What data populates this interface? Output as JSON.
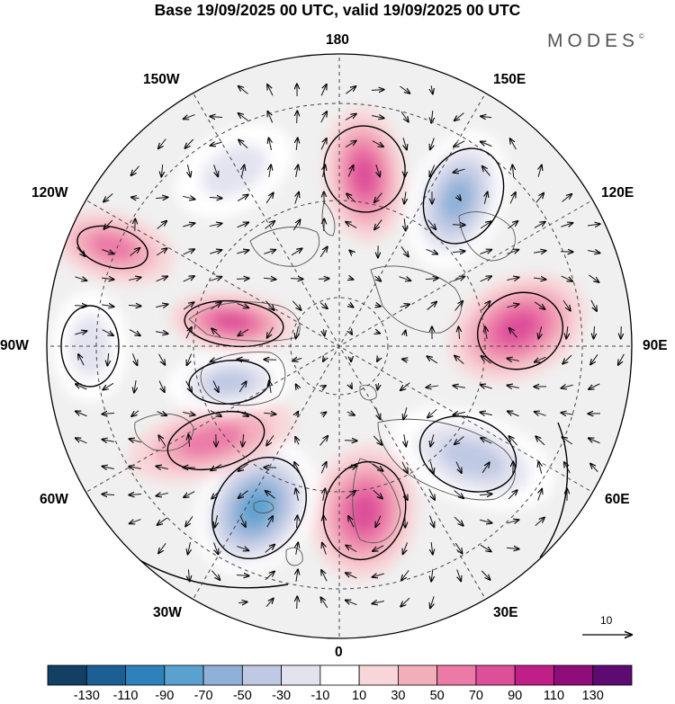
{
  "title": "Base 19/09/2025 00 UTC, valid 19/09/2025 00 UTC",
  "brand": "MODES",
  "brand_mark": "©",
  "longitude_labels": {
    "n180": "180",
    "e150": "150E",
    "e120": "120E",
    "e90": "90E",
    "e60": "60E",
    "e30": "30E",
    "s0": "0",
    "w30": "30W",
    "w60": "60W",
    "w90": "90W",
    "w120": "120W",
    "w150": "150W"
  },
  "reference_vector": "10",
  "colorbar": {
    "labels": [
      "-130",
      "-110",
      "-90",
      "-70",
      "-50",
      "-30",
      "-10",
      "10",
      "30",
      "50",
      "70",
      "90",
      "110",
      "130"
    ],
    "colors": [
      "#123f63",
      "#1b5f94",
      "#2d82bd",
      "#5ba1cf",
      "#8fb1d8",
      "#bfc9e3",
      "#e3e3f0",
      "#ffffff",
      "#f8d5d8",
      "#f3aebc",
      "#ec7aa7",
      "#dd4f99",
      "#c01f87",
      "#8e0d78",
      "#5e0a73"
    ]
  },
  "anomaly_centers": [
    {
      "name": "positive-center-180",
      "value": 70
    },
    {
      "name": "negative-center-135e",
      "value": -70
    },
    {
      "name": "positive-center-90e",
      "value": 70
    },
    {
      "name": "negative-center-50e",
      "value": -50
    },
    {
      "name": "positive-center-15e",
      "value": 70
    },
    {
      "name": "negative-center-30w",
      "value": -90
    },
    {
      "name": "positive-center-55w",
      "value": 50
    },
    {
      "name": "negative-center-95w",
      "value": -50
    },
    {
      "name": "positive-center-105w",
      "value": 70
    },
    {
      "name": "positive-center-125w",
      "value": 50
    },
    {
      "name": "negative-center-90w",
      "value": -30
    },
    {
      "name": "negative-center-150w",
      "value": -30
    }
  ]
}
